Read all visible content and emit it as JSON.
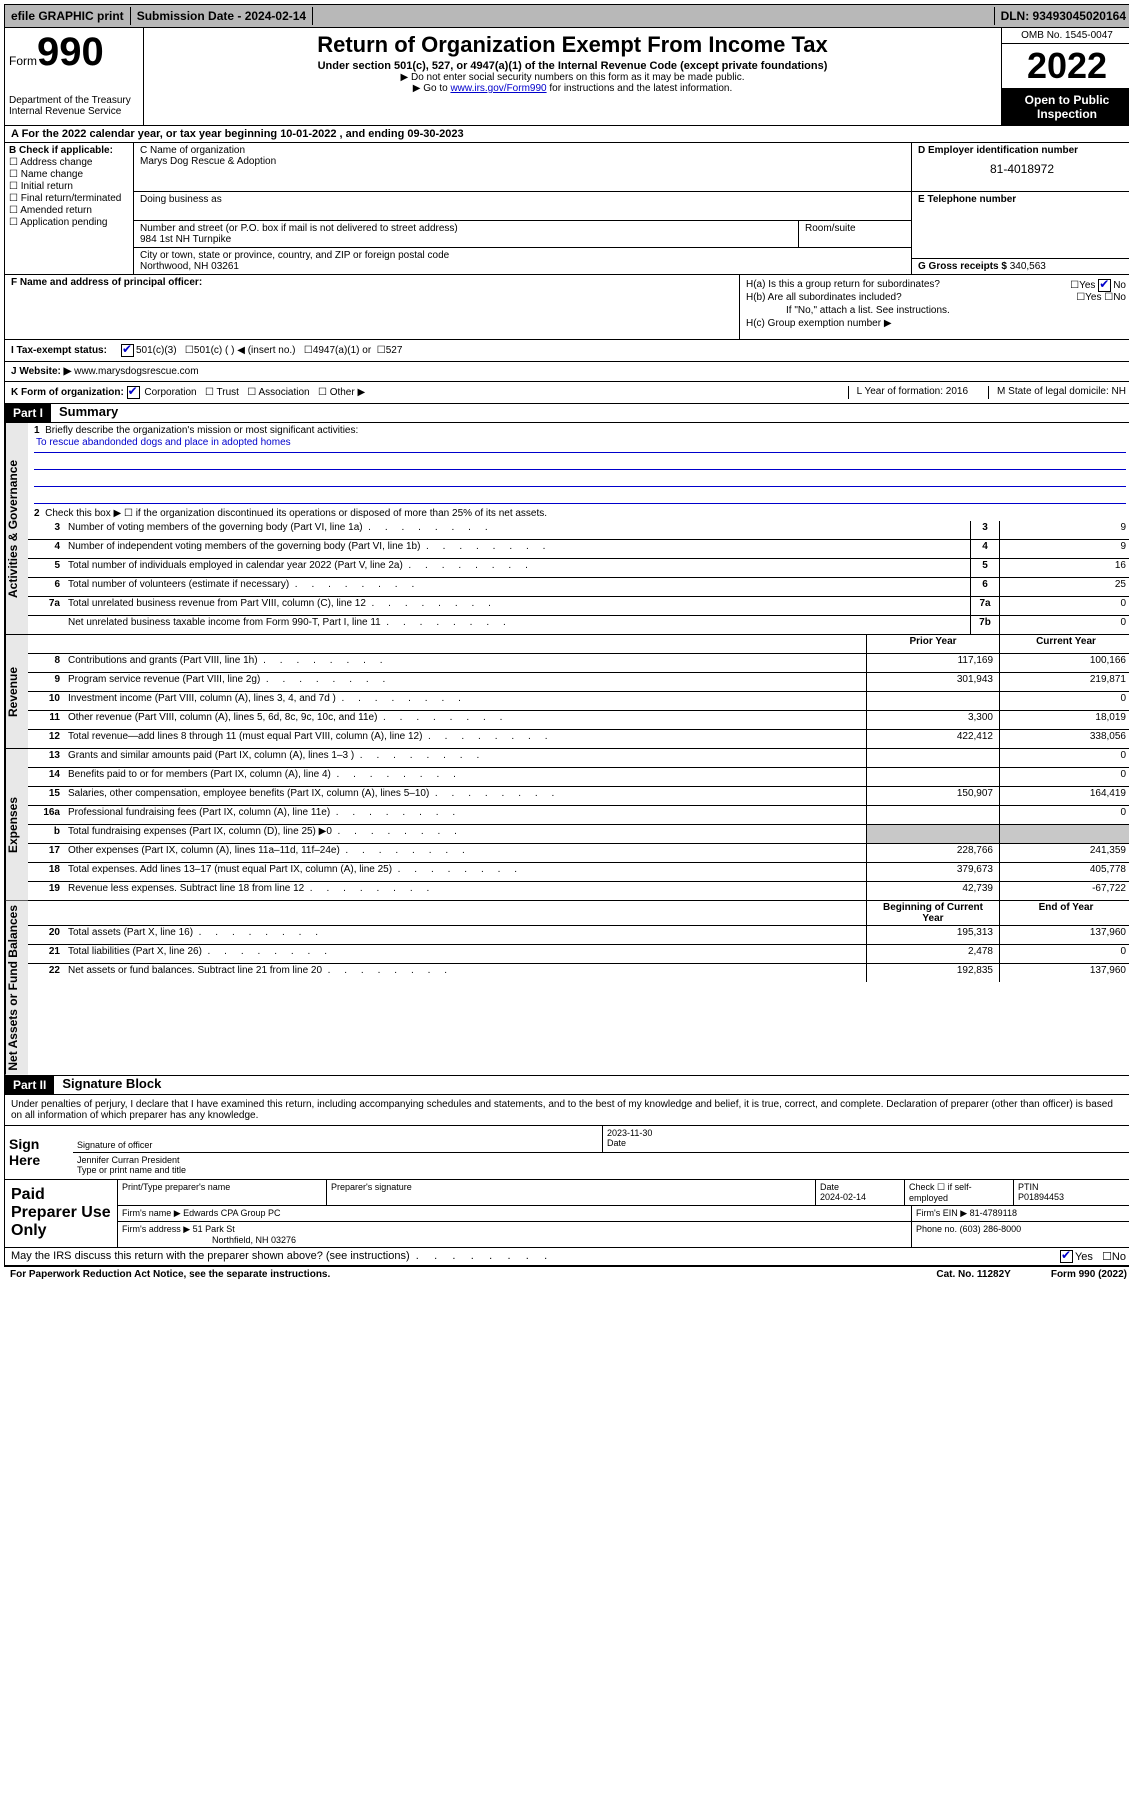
{
  "topbar": {
    "efile": "efile GRAPHIC print",
    "submission_label": "Submission Date - 2024-02-14",
    "dln": "DLN: 93493045020164"
  },
  "header": {
    "form_label": "Form",
    "form_num": "990",
    "dept": "Department of the Treasury",
    "irs": "Internal Revenue Service",
    "title": "Return of Organization Exempt From Income Tax",
    "subtitle": "Under section 501(c), 527, or 4947(a)(1) of the Internal Revenue Code (except private foundations)",
    "note1": "▶ Do not enter social security numbers on this form as it may be made public.",
    "note2_pre": "▶ Go to ",
    "note2_link": "www.irs.gov/Form990",
    "note2_post": " for instructions and the latest information.",
    "omb": "OMB No. 1545-0047",
    "year": "2022",
    "open": "Open to Public Inspection"
  },
  "row_a": "A  For the 2022 calendar year, or tax year beginning 10-01-2022   , and ending 09-30-2023",
  "box_b": {
    "title": "B Check if applicable:",
    "opts": [
      "Address change",
      "Name change",
      "Initial return",
      "Final return/terminated",
      "Amended return",
      "Application pending"
    ]
  },
  "box_c": {
    "name_label": "C Name of organization",
    "name": "Marys Dog Rescue & Adoption",
    "dba_label": "Doing business as",
    "street_label": "Number and street (or P.O. box if mail is not delivered to street address)",
    "street": "984 1st NH Turnpike",
    "suite_label": "Room/suite",
    "city_label": "City or town, state or province, country, and ZIP or foreign postal code",
    "city": "Northwood, NH  03261"
  },
  "box_d": {
    "label": "D Employer identification number",
    "val": "81-4018972"
  },
  "box_e": {
    "label": "E Telephone number"
  },
  "box_g": {
    "label": "G Gross receipts $",
    "val": "340,563"
  },
  "box_f": {
    "label": "F  Name and address of principal officer:"
  },
  "box_h": {
    "ha": "H(a)  Is this a group return for subordinates?",
    "hb": "H(b)  Are all subordinates included?",
    "hb_note": "If \"No,\" attach a list. See instructions.",
    "hc": "H(c)  Group exemption number ▶"
  },
  "row_i": {
    "label": "I   Tax-exempt status:",
    "opts": [
      "501(c)(3)",
      "501(c) (  ) ◀ (insert no.)",
      "4947(a)(1) or",
      "527"
    ]
  },
  "row_j": {
    "label": "J   Website: ▶",
    "val": "www.marysdogsrescue.com"
  },
  "row_k": {
    "label": "K Form of organization:",
    "opts": [
      "Corporation",
      "Trust",
      "Association",
      "Other ▶"
    ],
    "l": "L Year of formation: 2016",
    "m": "M State of legal domicile: NH"
  },
  "part1": {
    "hdr": "Part I",
    "title": "Summary",
    "q1": "Briefly describe the organization's mission or most significant activities:",
    "mission": "To rescue abandonded dogs and place in adopted homes",
    "q2": "Check this box ▶ ☐  if the organization discontinued its operations or disposed of more than 25% of its net assets.",
    "side_ag": "Activities & Governance",
    "side_rev": "Revenue",
    "side_exp": "Expenses",
    "side_na": "Net Assets or Fund Balances",
    "rows_gov": [
      {
        "n": "3",
        "d": "Number of voting members of the governing body (Part VI, line 1a)",
        "box": "3",
        "v": "9"
      },
      {
        "n": "4",
        "d": "Number of independent voting members of the governing body (Part VI, line 1b)",
        "box": "4",
        "v": "9"
      },
      {
        "n": "5",
        "d": "Total number of individuals employed in calendar year 2022 (Part V, line 2a)",
        "box": "5",
        "v": "16"
      },
      {
        "n": "6",
        "d": "Total number of volunteers (estimate if necessary)",
        "box": "6",
        "v": "25"
      },
      {
        "n": "7a",
        "d": "Total unrelated business revenue from Part VIII, column (C), line 12",
        "box": "7a",
        "v": "0"
      },
      {
        "n": "",
        "d": "Net unrelated business taxable income from Form 990-T, Part I, line 11",
        "box": "7b",
        "v": "0"
      }
    ],
    "col_prior": "Prior Year",
    "col_curr": "Current Year",
    "rows_rev": [
      {
        "n": "8",
        "d": "Contributions and grants (Part VIII, line 1h)",
        "p": "117,169",
        "c": "100,166"
      },
      {
        "n": "9",
        "d": "Program service revenue (Part VIII, line 2g)",
        "p": "301,943",
        "c": "219,871"
      },
      {
        "n": "10",
        "d": "Investment income (Part VIII, column (A), lines 3, 4, and 7d )",
        "p": "",
        "c": "0"
      },
      {
        "n": "11",
        "d": "Other revenue (Part VIII, column (A), lines 5, 6d, 8c, 9c, 10c, and 11e)",
        "p": "3,300",
        "c": "18,019"
      },
      {
        "n": "12",
        "d": "Total revenue—add lines 8 through 11 (must equal Part VIII, column (A), line 12)",
        "p": "422,412",
        "c": "338,056"
      }
    ],
    "rows_exp": [
      {
        "n": "13",
        "d": "Grants and similar amounts paid (Part IX, column (A), lines 1–3 )",
        "p": "",
        "c": "0"
      },
      {
        "n": "14",
        "d": "Benefits paid to or for members (Part IX, column (A), line 4)",
        "p": "",
        "c": "0"
      },
      {
        "n": "15",
        "d": "Salaries, other compensation, employee benefits (Part IX, column (A), lines 5–10)",
        "p": "150,907",
        "c": "164,419"
      },
      {
        "n": "16a",
        "d": "Professional fundraising fees (Part IX, column (A), line 11e)",
        "p": "",
        "c": "0"
      },
      {
        "n": "b",
        "d": "Total fundraising expenses (Part IX, column (D), line 25) ▶0",
        "p": null,
        "c": null
      },
      {
        "n": "17",
        "d": "Other expenses (Part IX, column (A), lines 11a–11d, 11f–24e)",
        "p": "228,766",
        "c": "241,359"
      },
      {
        "n": "18",
        "d": "Total expenses. Add lines 13–17 (must equal Part IX, column (A), line 25)",
        "p": "379,673",
        "c": "405,778"
      },
      {
        "n": "19",
        "d": "Revenue less expenses. Subtract line 18 from line 12",
        "p": "42,739",
        "c": "-67,722"
      }
    ],
    "col_beg": "Beginning of Current Year",
    "col_end": "End of Year",
    "rows_na": [
      {
        "n": "20",
        "d": "Total assets (Part X, line 16)",
        "p": "195,313",
        "c": "137,960"
      },
      {
        "n": "21",
        "d": "Total liabilities (Part X, line 26)",
        "p": "2,478",
        "c": "0"
      },
      {
        "n": "22",
        "d": "Net assets or fund balances. Subtract line 21 from line 20",
        "p": "192,835",
        "c": "137,960"
      }
    ]
  },
  "part2": {
    "hdr": "Part II",
    "title": "Signature Block",
    "penalties": "Under penalties of perjury, I declare that I have examined this return, including accompanying schedules and statements, and to the best of my knowledge and belief, it is true, correct, and complete. Declaration of preparer (other than officer) is based on all information of which preparer has any knowledge.",
    "sign_here": "Sign Here",
    "sig_officer": "Signature of officer",
    "sig_date": "2023-11-30",
    "date_label": "Date",
    "officer_name": "Jennifer Curran  President",
    "type_name": "Type or print name and title",
    "paid": "Paid Preparer Use Only",
    "prep_name_label": "Print/Type preparer's name",
    "prep_sig_label": "Preparer's signature",
    "prep_date_label": "Date",
    "prep_date": "2024-02-14",
    "check_self": "Check ☐ if self-employed",
    "ptin_label": "PTIN",
    "ptin": "P01894453",
    "firm_name_label": "Firm's name    ▶",
    "firm_name": "Edwards CPA Group PC",
    "firm_ein_label": "Firm's EIN ▶",
    "firm_ein": "81-4789118",
    "firm_addr_label": "Firm's address ▶",
    "firm_addr1": "51 Park St",
    "firm_addr2": "Northfield, NH  03276",
    "phone_label": "Phone no.",
    "phone": "(603) 286-8000",
    "may_irs": "May the IRS discuss this return with the preparer shown above? (see instructions)"
  },
  "footer": {
    "paperwork": "For Paperwork Reduction Act Notice, see the separate instructions.",
    "cat": "Cat. No. 11282Y",
    "form": "Form 990 (2022)"
  }
}
